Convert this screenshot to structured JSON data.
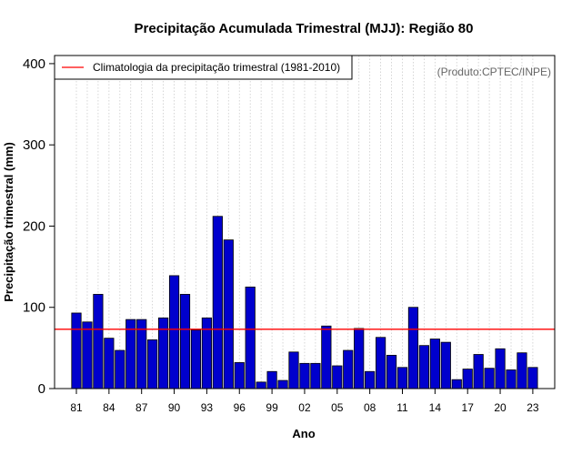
{
  "chart_data": {
    "type": "bar",
    "title": "Precipitação Acumulada Trimestral (MJJ): Região 80",
    "xlabel": "Ano",
    "ylabel": "Precipitação trimestral (mm)",
    "credit": "(Produto:CPTEC/INPE)",
    "ylim": [
      0,
      410
    ],
    "yticks": [
      0,
      100,
      200,
      300,
      400
    ],
    "xtick_labels": [
      "81",
      "84",
      "87",
      "90",
      "93",
      "96",
      "99",
      "02",
      "05",
      "08",
      "11",
      "14",
      "17",
      "20",
      "23"
    ],
    "categories": [
      1981,
      1982,
      1983,
      1984,
      1985,
      1986,
      1987,
      1988,
      1989,
      1990,
      1991,
      1992,
      1993,
      1994,
      1995,
      1996,
      1997,
      1998,
      1999,
      2000,
      2001,
      2002,
      2003,
      2004,
      2005,
      2006,
      2007,
      2008,
      2009,
      2010,
      2011,
      2012,
      2013,
      2014,
      2015,
      2016,
      2017,
      2018,
      2019,
      2020,
      2021,
      2022,
      2023
    ],
    "values": [
      93,
      82,
      116,
      62,
      47,
      85,
      85,
      60,
      87,
      139,
      116,
      72,
      87,
      212,
      183,
      32,
      125,
      8,
      21,
      10,
      45,
      31,
      31,
      77,
      28,
      47,
      74,
      21,
      63,
      41,
      26,
      100,
      53,
      61,
      57,
      11,
      24,
      42,
      25,
      49,
      23,
      44,
      26
    ],
    "climatology": {
      "label": "Climatologia da precipitação trimestral (1981-2010)",
      "value": 73
    },
    "grid": "vertical-dotted",
    "legend_position": "top-left",
    "colors": {
      "bar": "#0000CD",
      "bar_edge": "#000000",
      "climatology": "#FF0000",
      "grid": "#cccccc",
      "credit": "#666666"
    }
  }
}
